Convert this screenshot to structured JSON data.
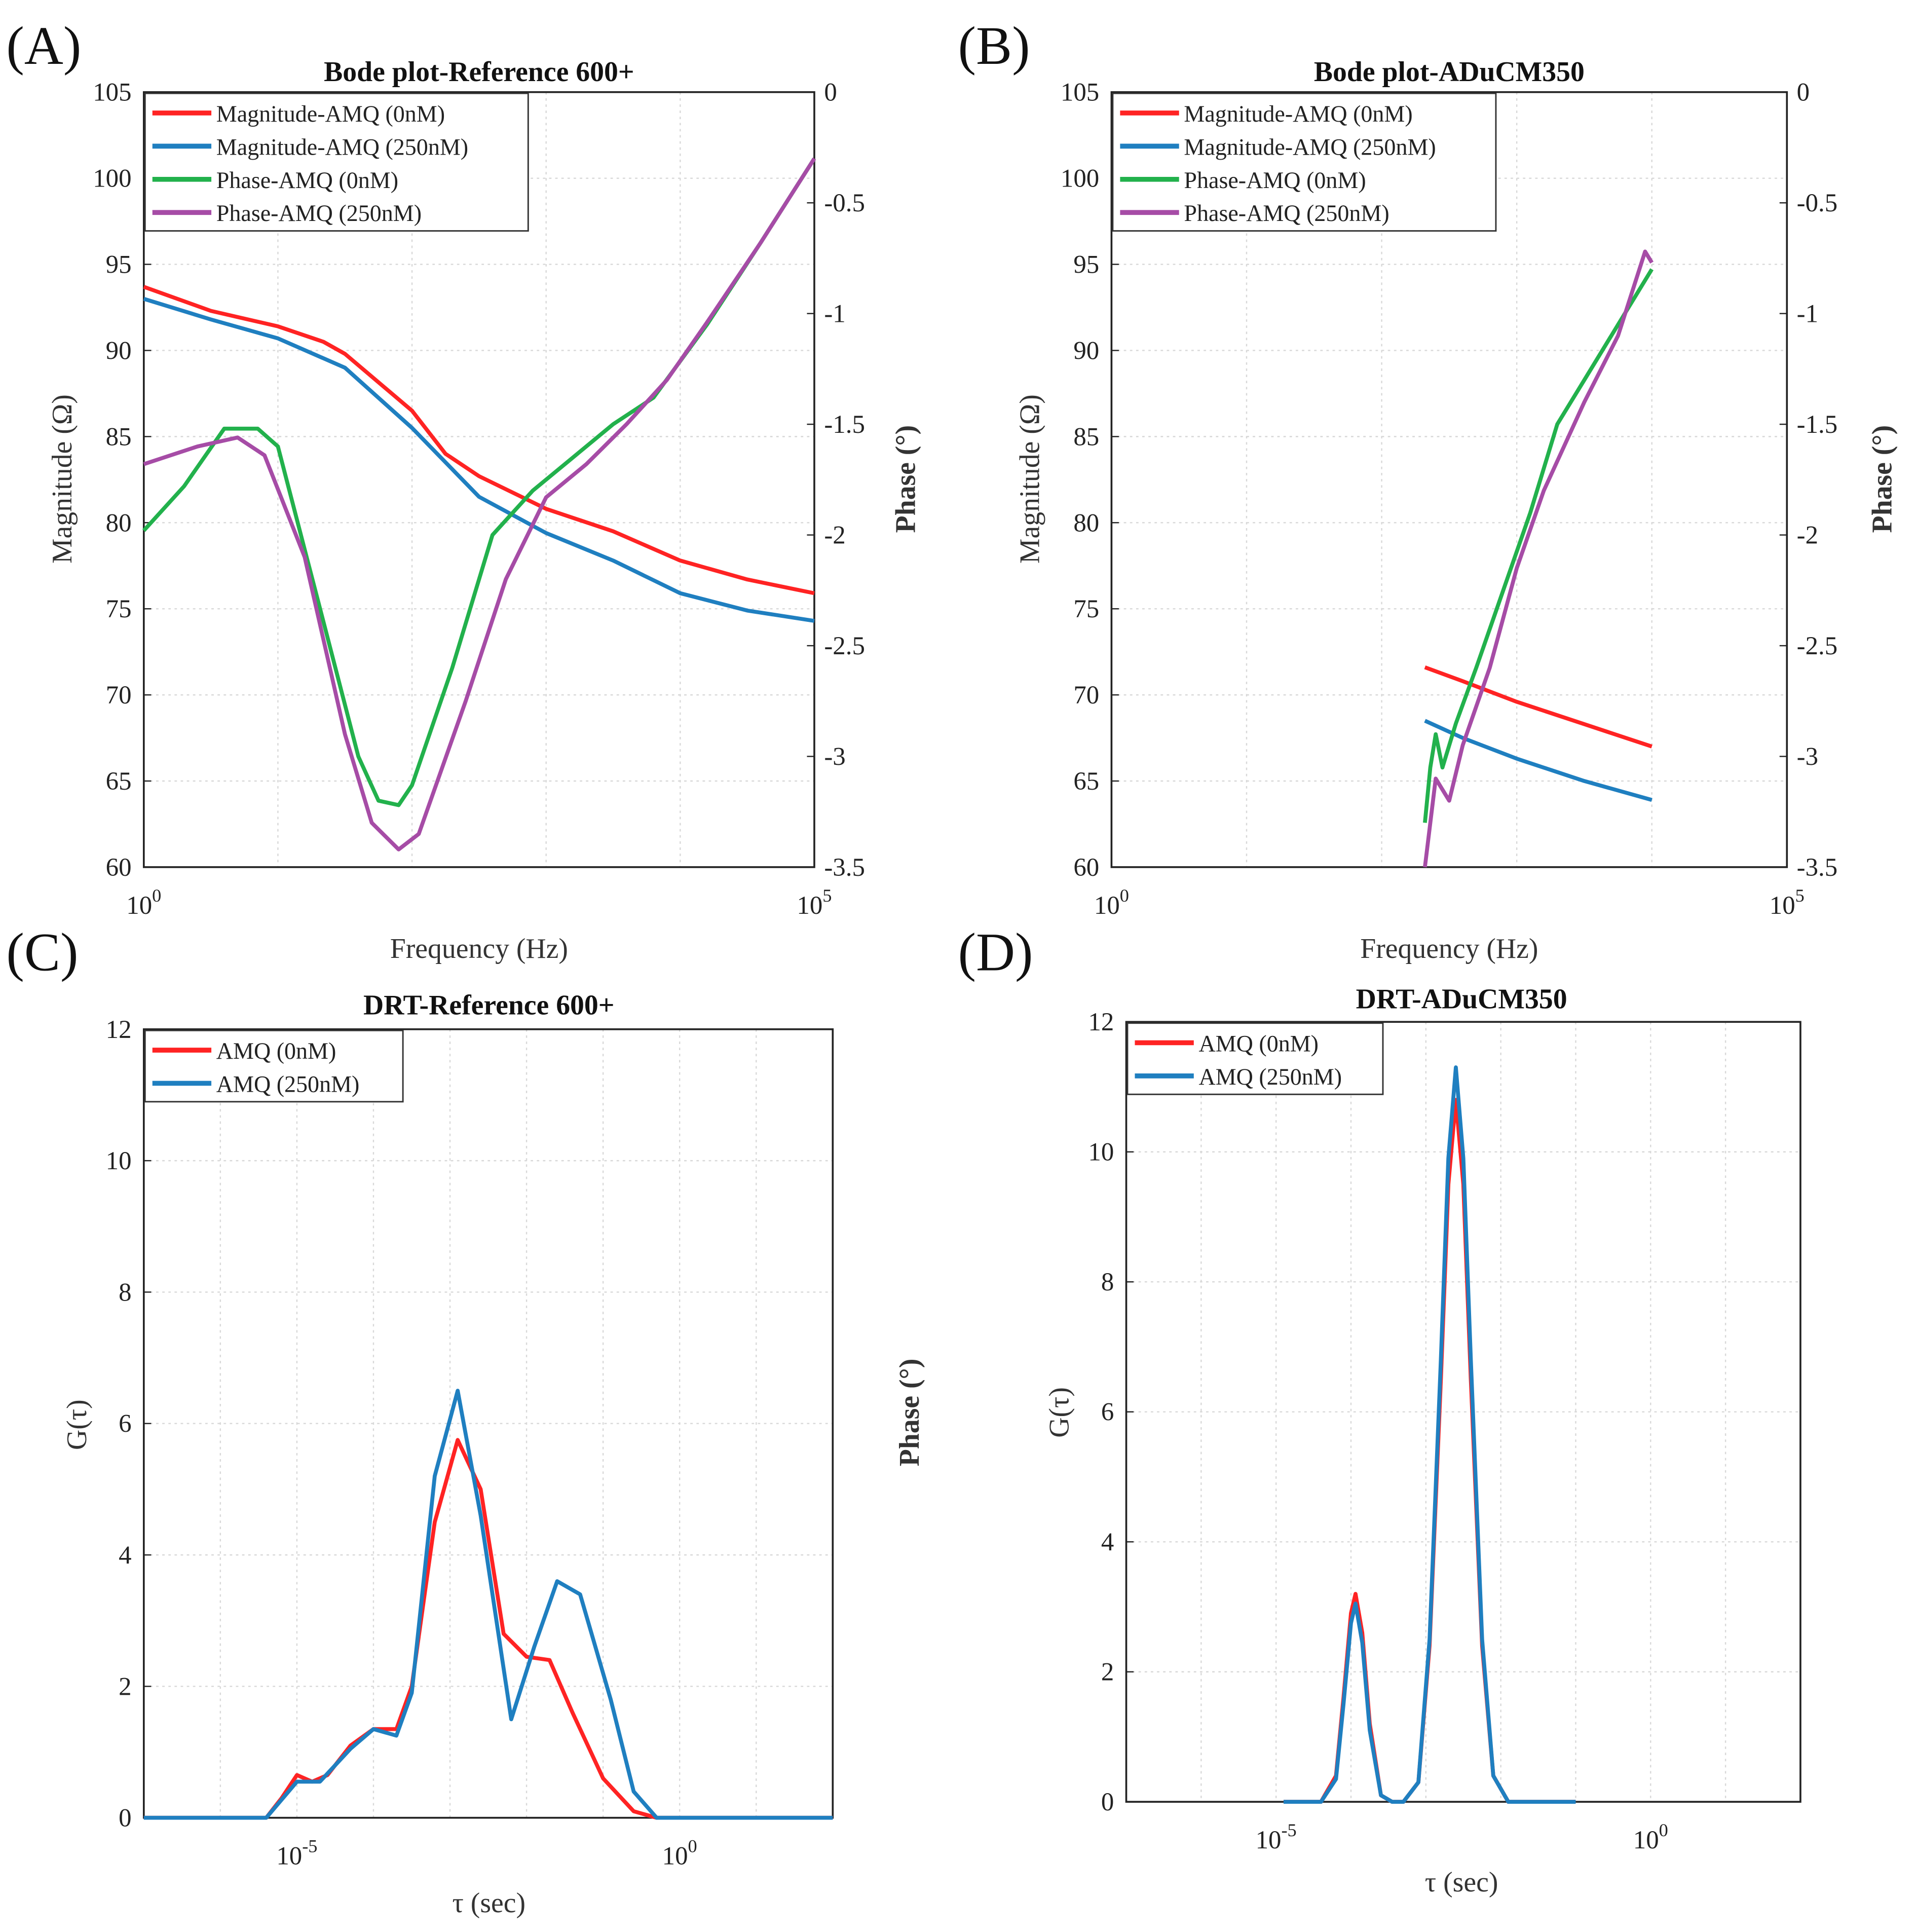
{
  "chart_data": [
    {
      "id": "A",
      "panel_label": "(A)",
      "type": "line",
      "title": "Bode plot-Reference 600+",
      "xlabel": "Frequency (Hz)",
      "ylabel": "Magnitude (Ω)",
      "ylabel_right": "Phase (°)",
      "xscale": "log",
      "xlim_log10": [
        0,
        5
      ],
      "x_ticks": [
        {
          "base": "10",
          "exp": "0",
          "v": 0
        },
        {
          "base": "10",
          "exp": "5",
          "v": 5
        }
      ],
      "ylim": [
        60,
        105
      ],
      "y_ticks": [
        60,
        65,
        70,
        75,
        80,
        85,
        90,
        95,
        100,
        105
      ],
      "ylim_right": [
        -3.5,
        0
      ],
      "y_ticks_right": [
        "-3.5",
        "-3",
        "-2.5",
        "-2",
        "-1.5",
        "-1",
        "-0.5",
        "0"
      ],
      "legend_position": "top-left",
      "grid": true,
      "series": [
        {
          "name": "Magnitude-AMQ (0nM)",
          "color": "#ff2323",
          "axis": "left",
          "x_log10": [
            0,
            0.5,
            1,
            1.34,
            1.5,
            2,
            2.25,
            2.5,
            3,
            3.5,
            4,
            4.5,
            5
          ],
          "y": [
            93.7,
            92.3,
            91.4,
            90.5,
            89.8,
            86.5,
            84,
            82.7,
            80.8,
            79.5,
            77.8,
            76.7,
            75.9
          ]
        },
        {
          "name": "Magnitude-AMQ (250nM)",
          "color": "#1f7fc0",
          "axis": "left",
          "x_log10": [
            0,
            0.5,
            1,
            1.5,
            2,
            2.5,
            3,
            3.5,
            4,
            4.5,
            5
          ],
          "y": [
            93,
            91.8,
            90.7,
            89,
            85.5,
            81.5,
            79.4,
            77.8,
            75.9,
            74.9,
            74.3
          ]
        },
        {
          "name": "Phase-AMQ (0nM)",
          "color": "#22b14c",
          "axis": "right",
          "x_log10": [
            0,
            0.3,
            0.6,
            0.85,
            1.0,
            1.3,
            1.6,
            1.75,
            1.9,
            2.0,
            2.3,
            2.6,
            2.9,
            3.2,
            3.5,
            3.8,
            4.2,
            4.6,
            5
          ],
          "y": [
            -1.98,
            -1.78,
            -1.52,
            -1.52,
            -1.6,
            -2.3,
            -3.0,
            -3.2,
            -3.22,
            -3.13,
            -2.6,
            -2.0,
            -1.8,
            -1.65,
            -1.5,
            -1.38,
            -1.05,
            -0.68,
            -0.3
          ]
        },
        {
          "name": "Phase-AMQ (250nM)",
          "color": "#a64ca6",
          "axis": "right",
          "x_log10": [
            0,
            0.4,
            0.7,
            0.9,
            1.2,
            1.5,
            1.7,
            1.9,
            2.05,
            2.4,
            2.7,
            3.0,
            3.3,
            3.6,
            3.9,
            4.2,
            4.6,
            5
          ],
          "y": [
            -1.68,
            -1.6,
            -1.56,
            -1.64,
            -2.1,
            -2.9,
            -3.3,
            -3.42,
            -3.35,
            -2.75,
            -2.2,
            -1.83,
            -1.68,
            -1.5,
            -1.3,
            -1.04,
            -0.68,
            -0.3
          ]
        }
      ]
    },
    {
      "id": "B",
      "panel_label": "(B)",
      "type": "line",
      "title": "Bode plot-ADuCM350",
      "xlabel": "Frequency (Hz)",
      "ylabel": "Magnitude (Ω)",
      "ylabel_right": "Phase (°)",
      "xscale": "log",
      "xlim_log10": [
        0,
        5
      ],
      "x_ticks": [
        {
          "base": "10",
          "exp": "0",
          "v": 0
        },
        {
          "base": "10",
          "exp": "5",
          "v": 5
        }
      ],
      "ylim": [
        60,
        105
      ],
      "y_ticks": [
        60,
        65,
        70,
        75,
        80,
        85,
        90,
        95,
        100,
        105
      ],
      "ylim_right": [
        -3.5,
        0
      ],
      "y_ticks_right": [
        "-3.5",
        "-3",
        "-2.5",
        "-2",
        "-1.5",
        "-1",
        "-0.5",
        "0"
      ],
      "legend_position": "top-left",
      "grid": true,
      "series": [
        {
          "name": "Magnitude-AMQ (0nM)",
          "color": "#ff2323",
          "axis": "left",
          "x_log10": [
            2.32,
            2.6,
            3.0,
            3.5,
            4.0
          ],
          "y": [
            71.6,
            70.8,
            69.6,
            68.3,
            67.0
          ]
        },
        {
          "name": "Magnitude-AMQ (250nM)",
          "color": "#1f7fc0",
          "axis": "left",
          "x_log10": [
            2.32,
            2.6,
            3.0,
            3.5,
            4.0
          ],
          "y": [
            68.5,
            67.5,
            66.3,
            65,
            63.9
          ]
        },
        {
          "name": "Phase-AMQ (0nM)",
          "color": "#22b14c",
          "axis": "right",
          "x_log10": [
            2.32,
            2.36,
            2.4,
            2.45,
            2.55,
            2.7,
            2.9,
            3.1,
            3.3,
            3.5,
            3.75,
            4.0
          ],
          "y": [
            -3.3,
            -3.05,
            -2.9,
            -3.05,
            -2.85,
            -2.6,
            -2.25,
            -1.9,
            -1.5,
            -1.3,
            -1.05,
            -0.8
          ]
        },
        {
          "name": "Phase-AMQ (250nM)",
          "color": "#a64ca6",
          "axis": "right",
          "x_log10": [
            2.32,
            2.4,
            2.5,
            2.6,
            2.8,
            3.0,
            3.2,
            3.5,
            3.75,
            3.95,
            4.0
          ],
          "y": [
            -3.5,
            -3.1,
            -3.2,
            -2.95,
            -2.6,
            -2.15,
            -1.8,
            -1.4,
            -1.1,
            -0.72,
            -0.77
          ]
        }
      ]
    },
    {
      "id": "C",
      "panel_label": "(C)",
      "type": "line",
      "title": "DRT-Reference 600+",
      "xlabel": "τ (sec)",
      "ylabel": "G(τ)",
      "stray_label": "Phase (°)",
      "xscale": "log",
      "xlim_log10": [
        -7,
        2
      ],
      "x_ticks": [
        {
          "base": "10",
          "exp": "-5",
          "v": -5
        },
        {
          "base": "10",
          "exp": "0",
          "v": 0
        }
      ],
      "ylim": [
        0,
        12
      ],
      "y_ticks": [
        0,
        2,
        4,
        6,
        8,
        10,
        12
      ],
      "legend_position": "top-left",
      "grid": true,
      "series": [
        {
          "name": "AMQ (0nM)",
          "color": "#ff2323",
          "axis": "left",
          "x_log10": [
            -7,
            -5.4,
            -5.2,
            -5.0,
            -4.8,
            -4.6,
            -4.3,
            -4.0,
            -3.7,
            -3.5,
            -3.2,
            -2.9,
            -2.6,
            -2.3,
            -2.0,
            -1.7,
            -1.4,
            -1.0,
            -0.6,
            -0.3,
            2
          ],
          "y": [
            0,
            0,
            0.3,
            0.65,
            0.55,
            0.65,
            1.1,
            1.35,
            1.35,
            2.0,
            4.5,
            5.75,
            5.0,
            2.8,
            2.45,
            2.4,
            1.6,
            0.6,
            0.1,
            0,
            0
          ]
        },
        {
          "name": "AMQ (250nM)",
          "color": "#1f7fc0",
          "axis": "left",
          "x_log10": [
            -7,
            -5.4,
            -5.0,
            -4.7,
            -4.3,
            -4.0,
            -3.7,
            -3.5,
            -3.2,
            -2.9,
            -2.6,
            -2.2,
            -1.9,
            -1.6,
            -1.3,
            -0.9,
            -0.6,
            -0.3,
            2
          ],
          "y": [
            0,
            0,
            0.55,
            0.55,
            1.05,
            1.35,
            1.25,
            1.9,
            5.2,
            6.5,
            4.6,
            1.5,
            2.6,
            3.6,
            3.4,
            1.8,
            0.4,
            0,
            0
          ]
        }
      ]
    },
    {
      "id": "D",
      "panel_label": "(D)",
      "type": "line",
      "title": "DRT-ADuCM350",
      "xlabel": "τ (sec)",
      "ylabel": "G(τ)",
      "xscale": "log",
      "xlim_log10": [
        -7,
        2
      ],
      "x_ticks": [
        {
          "base": "10",
          "exp": "-5",
          "v": -5
        },
        {
          "base": "10",
          "exp": "0",
          "v": 0
        }
      ],
      "ylim": [
        0,
        12
      ],
      "y_ticks": [
        0,
        2,
        4,
        6,
        8,
        10,
        12
      ],
      "legend_position": "top-left",
      "grid": true,
      "series": [
        {
          "name": "AMQ (0nM)",
          "color": "#ff2323",
          "axis": "left",
          "x_log10": [
            -4.9,
            -4.4,
            -4.2,
            -4.1,
            -4.0,
            -3.94,
            -3.85,
            -3.75,
            -3.6,
            -3.45,
            -3.3,
            -3.1,
            -2.95,
            -2.8,
            -2.7,
            -2.6,
            -2.5,
            -2.4,
            -2.25,
            -2.1,
            -1.9,
            -1.5,
            -1.0
          ],
          "y": [
            0,
            0,
            0.4,
            1.6,
            2.9,
            3.2,
            2.6,
            1.2,
            0.1,
            0,
            0,
            0.3,
            2.4,
            6.5,
            9.5,
            10.8,
            9.5,
            6.5,
            2.4,
            0.4,
            0,
            0,
            0
          ]
        },
        {
          "name": "AMQ (250nM)",
          "color": "#1f7fc0",
          "axis": "left",
          "x_log10": [
            -4.9,
            -4.4,
            -4.2,
            -4.1,
            -4.0,
            -3.94,
            -3.85,
            -3.75,
            -3.6,
            -3.45,
            -3.3,
            -3.1,
            -2.95,
            -2.8,
            -2.7,
            -2.6,
            -2.5,
            -2.4,
            -2.25,
            -2.1,
            -1.9,
            -1.5,
            -1.0
          ],
          "y": [
            0,
            0,
            0.35,
            1.5,
            2.75,
            3.05,
            2.45,
            1.1,
            0.1,
            0,
            0,
            0.3,
            2.5,
            6.8,
            9.9,
            11.3,
            9.9,
            6.8,
            2.5,
            0.4,
            0,
            0,
            0
          ]
        }
      ]
    }
  ]
}
